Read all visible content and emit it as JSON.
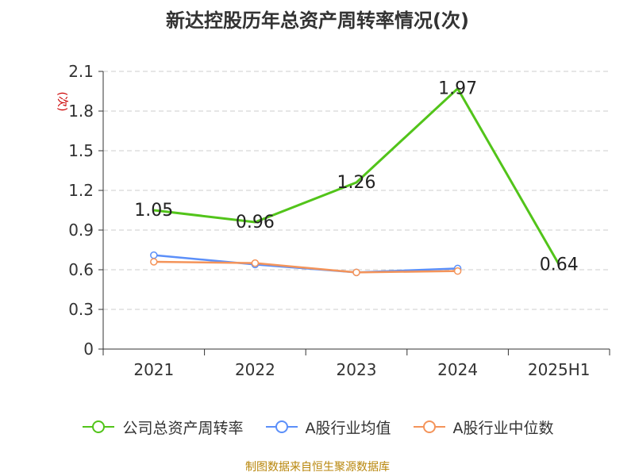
{
  "chart_data": {
    "type": "line",
    "title": "新达控股历年总资产周转率情况(次)",
    "ylabel": "(次)",
    "xlabel": "",
    "categories": [
      "2021",
      "2022",
      "2023",
      "2024",
      "2025H1"
    ],
    "ylim": [
      0,
      2.1
    ],
    "yticks": [
      "0",
      "0.3",
      "0.6",
      "0.9",
      "1.2",
      "1.5",
      "1.8",
      "2.1"
    ],
    "grid": true,
    "legend_position": "bottom",
    "series": [
      {
        "name": "公司总资产周转率",
        "color": "#52c41a",
        "values": [
          1.05,
          0.96,
          1.26,
          1.97,
          0.64
        ],
        "labels": [
          "1.05",
          "0.96",
          "1.26",
          "1.97",
          "0.64"
        ]
      },
      {
        "name": "A股行业均值",
        "color": "#5b8ff9",
        "values": [
          0.71,
          0.64,
          0.58,
          0.61,
          null
        ]
      },
      {
        "name": "A股行业中位数",
        "color": "#f4945a",
        "values": [
          0.66,
          0.65,
          0.58,
          0.59,
          null
        ]
      }
    ]
  },
  "source_note": "制图数据来自恒生聚源数据库"
}
